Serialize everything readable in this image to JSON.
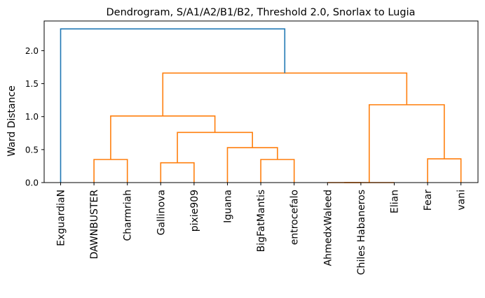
{
  "chart_data": {
    "type": "dendrogram",
    "title": "Dendrogram, S/A1/A2/B1/B2, Threshold 2.0, Snorlax to Lugia",
    "xlabel": "",
    "ylabel": "Ward Distance",
    "ylim": [
      0,
      2.45
    ],
    "yticks": [
      "0.0",
      "0.5",
      "1.0",
      "1.5",
      "2.0"
    ],
    "threshold": 2.0,
    "grid": false,
    "leaves": [
      "ExguardiaN",
      "DAWNBUSTER",
      "Charmriah",
      "Gallinova",
      "pixie909",
      "Iguana",
      "BigFatMantis",
      "entrocefalo",
      "AhmedxWaleed",
      "Chiles Habaneros",
      "Elian",
      "Fear",
      "vani"
    ],
    "colors": {
      "above_threshold": "#1f77b4",
      "cluster": "#ff7f0e"
    },
    "links": [
      {
        "left": "DAWNBUSTER",
        "right": "Charmriah",
        "height": 0.35
      },
      {
        "left": "Gallinova",
        "right": "pixie909",
        "height": 0.3
      },
      {
        "left": "BigFatMantis",
        "right": "entrocefalo",
        "height": 0.35
      },
      {
        "left": "Iguana",
        "right": "BigFatMantis+entrocefalo",
        "height": 0.53
      },
      {
        "left": "Gallinova+pixie909",
        "right": "Iguana+BigFatMantis+entrocefalo",
        "height": 0.76
      },
      {
        "left": "DAWNBUSTER+Charmriah",
        "right": "Gallinova..entrocefalo",
        "height": 1.01
      },
      {
        "left": "AhmedxWaleed",
        "right": "Chiles Habaneros",
        "height": 0.0
      },
      {
        "left": "AhmedxWaleed+Chiles Habaneros",
        "right": "Elian",
        "height": 0.0
      },
      {
        "left": "Fear",
        "right": "vani",
        "height": 0.36
      },
      {
        "left": "AhmedxWaleed+Chiles Habaneros+Elian",
        "right": "Fear+vani",
        "height": 1.18
      },
      {
        "left": "DAWNBUSTER..entrocefalo",
        "right": "AhmedxWaleed..vani",
        "height": 1.66
      },
      {
        "left": "ExguardiaN",
        "right": "DAWNBUSTER..vani",
        "height": 2.33
      }
    ]
  }
}
